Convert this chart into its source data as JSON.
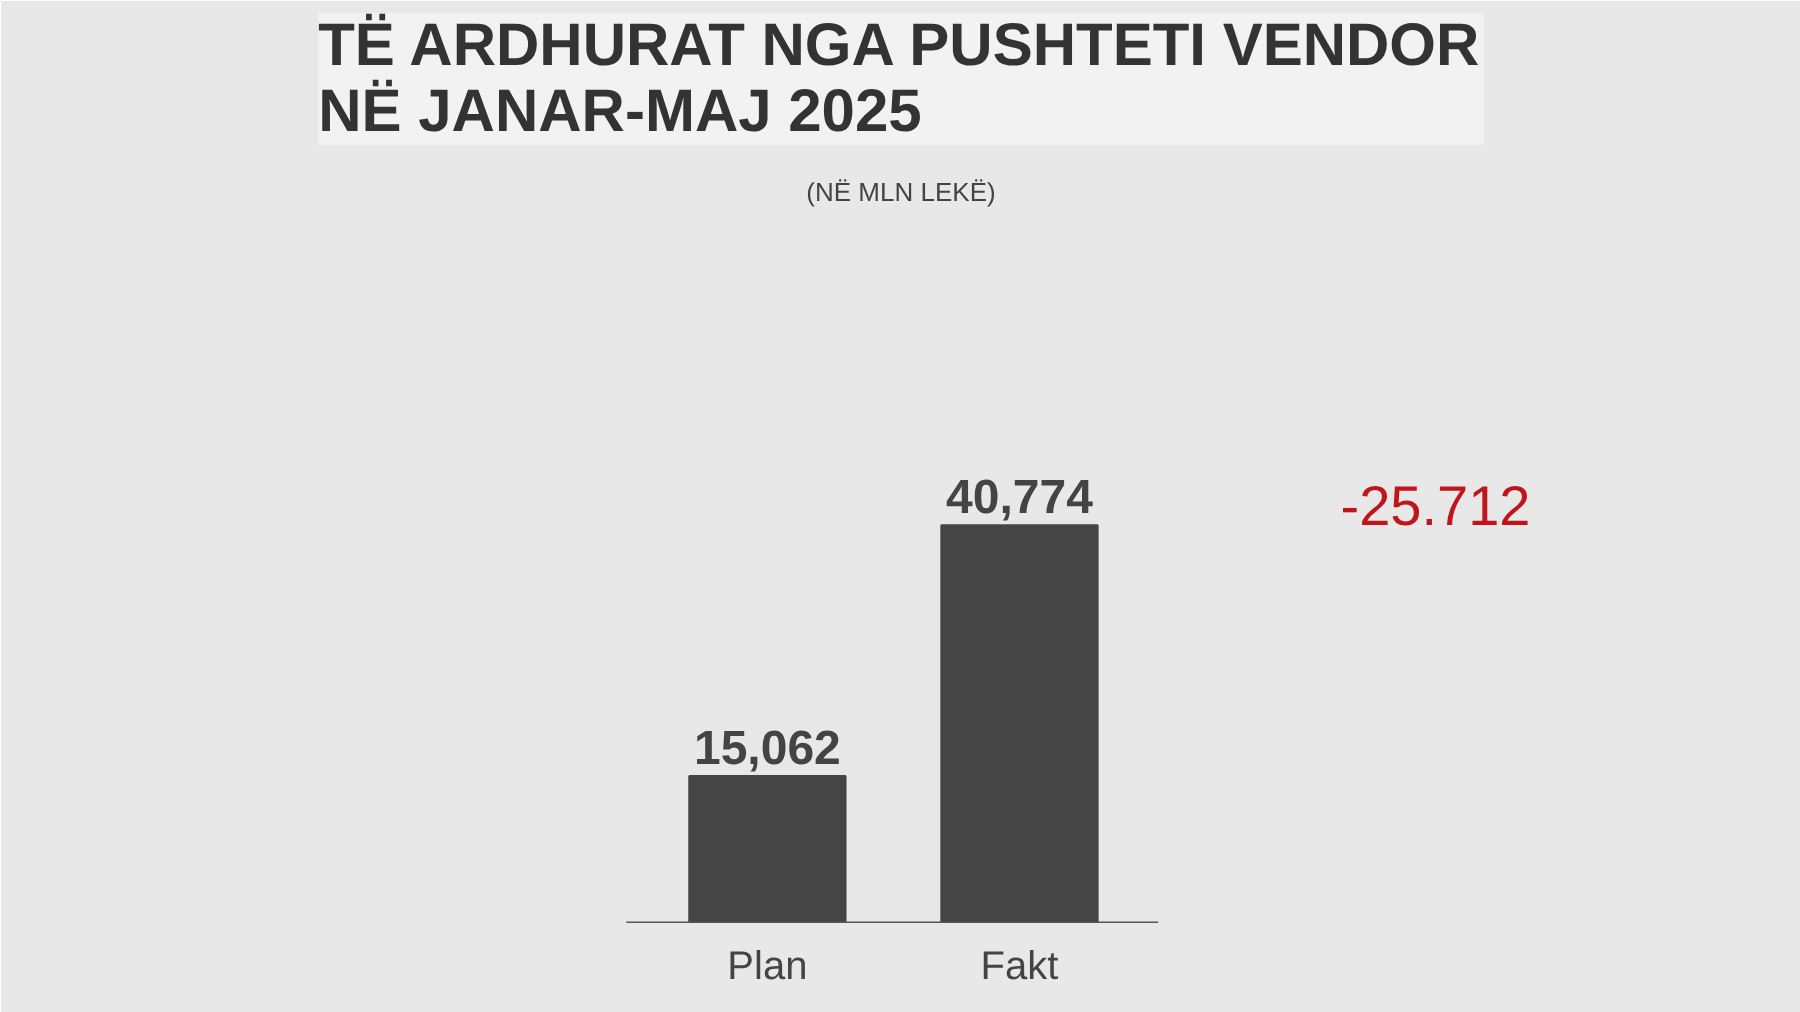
{
  "chart_data": {
    "type": "bar",
    "title": "TË ARDHURAT NGA PUSHTETI VENDOR\nNË JANAR-MAJ 2025",
    "subtitle": "(NË MLN LEKË)",
    "categories": [
      "Plan",
      "Fakt"
    ],
    "values": [
      15062,
      40774
    ],
    "value_labels": [
      "15,062",
      "40,774"
    ],
    "color": "#454545",
    "annotations": [
      "-25.712"
    ]
  }
}
